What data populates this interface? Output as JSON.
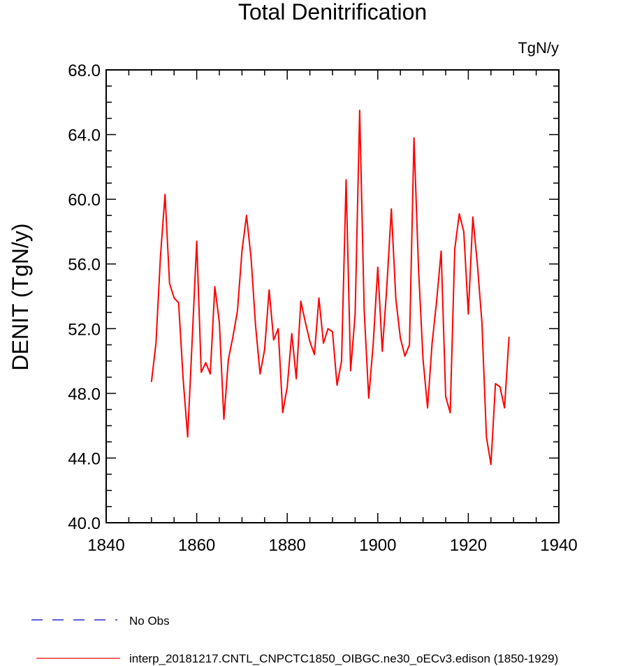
{
  "chart_data": {
    "type": "line",
    "title": "Total Denitrification",
    "units_label": "TgN/y",
    "ylabel": "DENIT  (TgN/y)",
    "xlabel": "",
    "xlim": [
      1840,
      1940
    ],
    "ylim": [
      40,
      68
    ],
    "x_ticks": [
      1840,
      1860,
      1880,
      1900,
      1920,
      1940
    ],
    "x_tick_labels": [
      "1840",
      "1860",
      "1880",
      "1900",
      "1920",
      "1940"
    ],
    "y_ticks": [
      40,
      44,
      48,
      52,
      56,
      60,
      64,
      68
    ],
    "y_tick_labels": [
      "40.0",
      "44.0",
      "48.0",
      "52.0",
      "56.0",
      "60.0",
      "64.0",
      "68.0"
    ],
    "grid": false,
    "legend_position": "bottom",
    "series": [
      {
        "name": "interp_20181217.CNTL_CNPCTC1850_OIBGC.ne30_oECv3.edison (1850-1929)",
        "color": "#ff0000",
        "style": "solid",
        "x": [
          1850,
          1851,
          1852,
          1853,
          1854,
          1855,
          1856,
          1857,
          1858,
          1859,
          1860,
          1861,
          1862,
          1863,
          1864,
          1865,
          1866,
          1867,
          1868,
          1869,
          1870,
          1871,
          1872,
          1873,
          1874,
          1875,
          1876,
          1877,
          1878,
          1879,
          1880,
          1881,
          1882,
          1883,
          1884,
          1885,
          1886,
          1887,
          1888,
          1889,
          1890,
          1891,
          1892,
          1893,
          1894,
          1895,
          1896,
          1897,
          1898,
          1899,
          1900,
          1901,
          1902,
          1903,
          1904,
          1905,
          1906,
          1907,
          1908,
          1909,
          1910,
          1911,
          1912,
          1913,
          1914,
          1915,
          1916,
          1917,
          1918,
          1919,
          1920,
          1921,
          1922,
          1923,
          1924,
          1925,
          1926,
          1927,
          1928,
          1929
        ],
        "values": [
          48.7,
          51.1,
          56.5,
          60.3,
          54.8,
          53.9,
          53.6,
          48.9,
          45.3,
          51.3,
          57.4,
          49.3,
          49.9,
          49.2,
          54.6,
          52.4,
          46.4,
          50.1,
          51.5,
          53.1,
          56.8,
          59.0,
          56.4,
          52.2,
          49.2,
          50.7,
          54.4,
          51.3,
          52.0,
          46.8,
          48.4,
          51.7,
          48.9,
          53.7,
          52.4,
          51.2,
          50.4,
          53.9,
          51.1,
          52.0,
          51.8,
          48.5,
          50.0,
          61.2,
          49.4,
          52.9,
          65.5,
          53.1,
          47.7,
          51.1,
          55.8,
          50.6,
          54.6,
          59.4,
          53.8,
          51.4,
          50.3,
          51.0,
          63.8,
          55.7,
          50.1,
          47.1,
          51.1,
          53.7,
          56.8,
          47.8,
          46.8,
          56.9,
          59.1,
          58.0,
          52.9,
          58.9,
          56.0,
          52.4,
          45.3,
          43.6,
          48.6,
          48.4,
          47.1,
          51.5
        ]
      },
      {
        "name": "No Obs",
        "color": "#0000cc",
        "style": "dashed",
        "x": [],
        "values": []
      }
    ]
  }
}
